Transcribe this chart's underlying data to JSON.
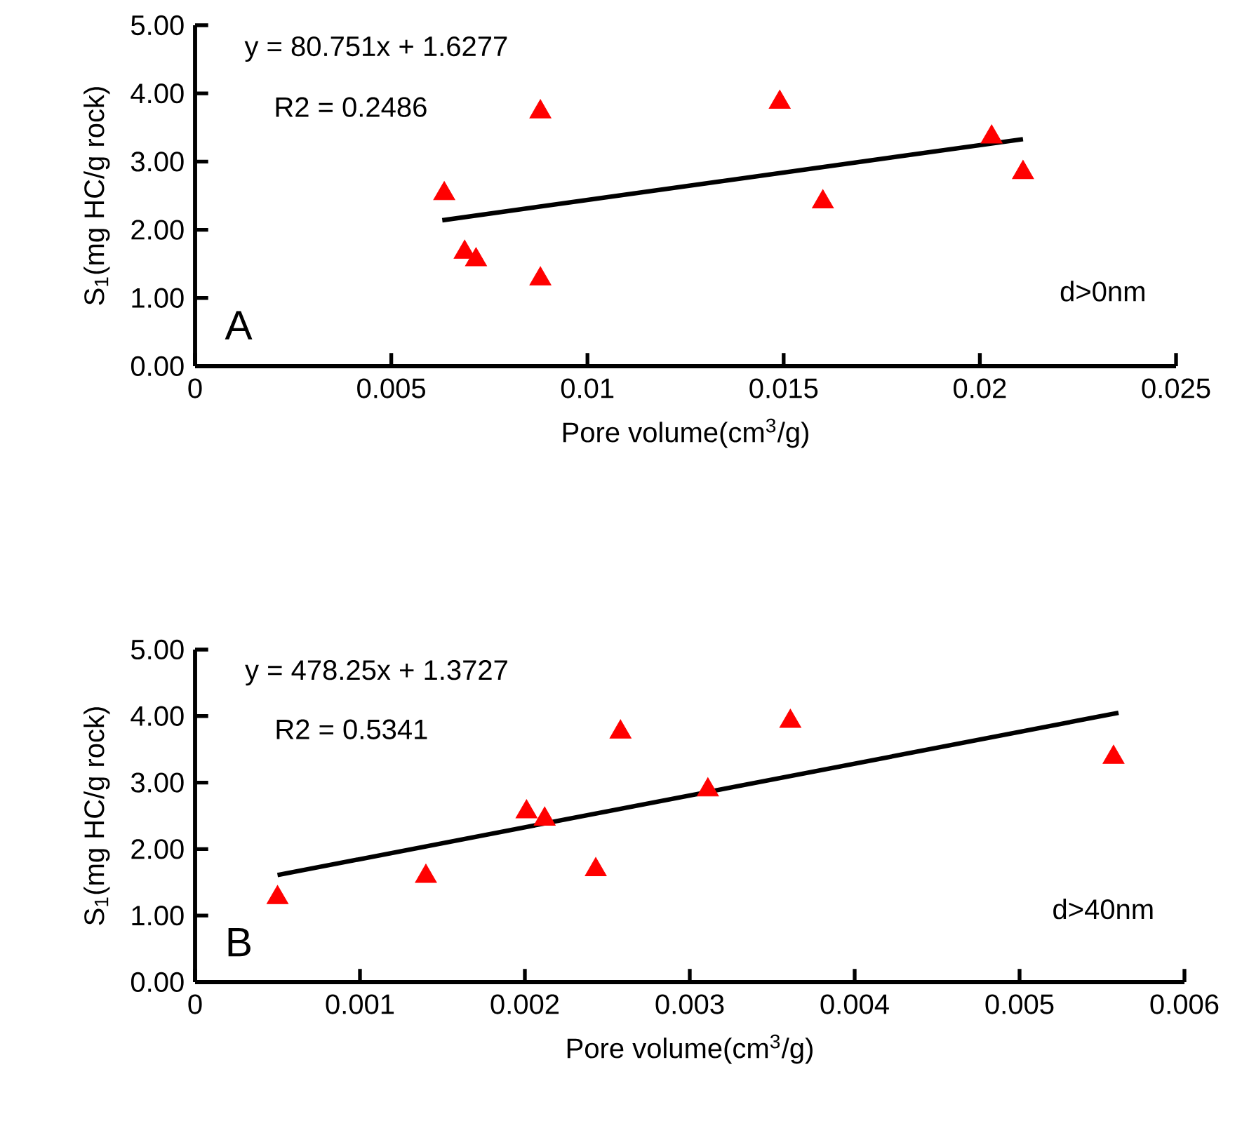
{
  "chart_data": [
    {
      "type": "scatter",
      "xlabel": "Pore volume(cm$^{3}$/g)",
      "ylabel": "S$_{1}$(mg HC/g rock)",
      "xlim": [
        0,
        0.025
      ],
      "xticks": [
        0,
        0.005,
        0.01,
        0.015,
        0.02,
        0.025
      ],
      "ylim": [
        0,
        5
      ],
      "yticks": [
        {
          "value": 0,
          "label": "0.00"
        },
        {
          "value": 1,
          "label": "1.00"
        },
        {
          "value": 2,
          "label": "2.00"
        },
        {
          "value": 3,
          "label": "3.00"
        },
        {
          "value": 4,
          "label": "4.00"
        },
        {
          "value": 5,
          "label": "5.00"
        }
      ],
      "annotations": [
        "y = 80.751x + 1.6277",
        "R2 = 0.2486",
        "A",
        "d>0nm"
      ],
      "series": [
        {
          "color": "#ff0000",
          "marker": "triangle",
          "x": [
            0.00635,
            0.00687,
            0.00716,
            0.0088,
            0.0088,
            0.0149,
            0.016,
            0.0203,
            0.0211
          ],
          "values": [
            2.53,
            1.67,
            1.56,
            1.28,
            3.73,
            3.87,
            2.41,
            3.36,
            2.84
          ]
        },
        {
          "type": "line",
          "color": "#000000",
          "marker": "none",
          "x": [
            0.0063,
            0.0211
          ],
          "values": [
            2.14,
            3.33
          ]
        }
      ]
    },
    {
      "type": "scatter",
      "xlabel": "Pore volume(cm$^{3}$/g)",
      "ylabel": "S$_{1}$(mg HC/g rock)",
      "xlim": [
        0,
        0.006
      ],
      "xticks": [
        0,
        0.001,
        0.002,
        0.003,
        0.004,
        0.005,
        0.006
      ],
      "ylim": [
        0,
        5
      ],
      "yticks": [
        {
          "value": 0,
          "label": "0.00"
        },
        {
          "value": 1,
          "label": "1.00"
        },
        {
          "value": 2,
          "label": "2.00"
        },
        {
          "value": 3,
          "label": "3.00"
        },
        {
          "value": 4,
          "label": "4.00"
        },
        {
          "value": 5,
          "label": "5.00"
        }
      ],
      "annotations": [
        "y = 478.25x + 1.3727",
        "R2 = 0.5341",
        "B",
        "d>40nm"
      ],
      "series": [
        {
          "color": "#ff0000",
          "marker": "triangle",
          "x": [
            0.0005,
            0.0014,
            0.00201,
            0.00212,
            0.00243,
            0.00258,
            0.00311,
            0.00361,
            0.00557
          ],
          "values": [
            1.27,
            1.59,
            2.56,
            2.45,
            1.69,
            3.76,
            2.89,
            3.92,
            3.38
          ]
        },
        {
          "type": "line",
          "color": "#000000",
          "marker": "none",
          "x": [
            0.0005,
            0.0056
          ],
          "values": [
            1.61,
            4.05
          ]
        }
      ]
    }
  ]
}
